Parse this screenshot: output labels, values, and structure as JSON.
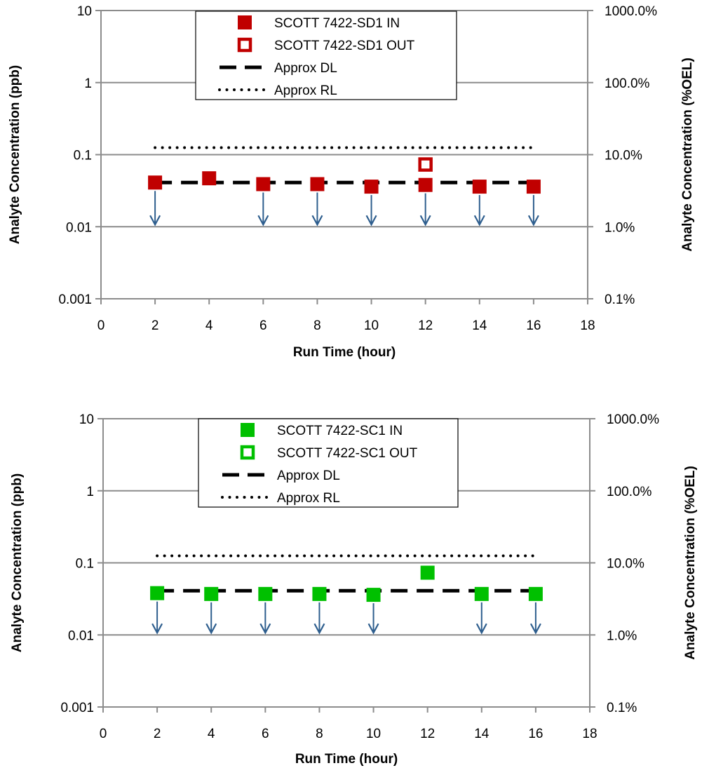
{
  "chart_data": [
    {
      "type": "scatter",
      "x_label": "Run Time (hour)",
      "y_label": "Analyte Concentration  (ppb)",
      "y2_label": "Analyte Concentration  (%OEL)",
      "x_range": [
        0,
        18
      ],
      "x_ticks": [
        "0",
        "2",
        "4",
        "6",
        "8",
        "10",
        "12",
        "14",
        "16",
        "18"
      ],
      "y_scale": "log",
      "y_range": [
        0.001,
        10
      ],
      "y_ticks": [
        "10",
        "1",
        "0.1",
        "0.01",
        "0.001"
      ],
      "y2_ticks": [
        "1000.0%",
        "100.0%",
        "10.0%",
        "1.0%",
        "0.1%"
      ],
      "grid": "horizontal major",
      "legend_position": "top-center",
      "series": [
        {
          "name": "SCOTT 7422-SD1 IN",
          "marker": "filled-square",
          "color": "#C00000",
          "points": [
            {
              "x": 2,
              "y": 0.041,
              "below_detection": true
            },
            {
              "x": 4,
              "y": 0.047,
              "below_detection": false
            },
            {
              "x": 6,
              "y": 0.039,
              "below_detection": true
            },
            {
              "x": 8,
              "y": 0.039,
              "below_detection": true
            },
            {
              "x": 10,
              "y": 0.036,
              "below_detection": true
            },
            {
              "x": 12,
              "y": 0.038,
              "below_detection": true
            },
            {
              "x": 14,
              "y": 0.036,
              "below_detection": true
            },
            {
              "x": 16,
              "y": 0.036,
              "below_detection": true
            }
          ]
        },
        {
          "name": "SCOTT 7422-SD1 OUT",
          "marker": "open-square",
          "color": "#C00000",
          "points": [
            {
              "x": 12,
              "y": 0.073,
              "below_detection": false
            }
          ]
        }
      ],
      "reference_lines": [
        {
          "name": "Approx DL",
          "style": "dashed",
          "color": "#000000",
          "y": 0.041,
          "x_range": [
            2,
            16
          ]
        },
        {
          "name": "Approx RL",
          "style": "dotted",
          "color": "#000000",
          "y": 0.125,
          "x_range": [
            2,
            16
          ]
        }
      ],
      "arrow_color": "#2E5E8E"
    },
    {
      "type": "scatter",
      "x_label": "Run Time (hour)",
      "y_label": "Analyte Concentration  (ppb)",
      "y2_label": "Analyte Concentration  (%OEL)",
      "x_range": [
        0,
        18
      ],
      "x_ticks": [
        "0",
        "2",
        "4",
        "6",
        "8",
        "10",
        "12",
        "14",
        "16",
        "18"
      ],
      "y_scale": "log",
      "y_range": [
        0.001,
        10
      ],
      "y_ticks": [
        "10",
        "1",
        "0.1",
        "0.01",
        "0.001"
      ],
      "y2_ticks": [
        "1000.0%",
        "100.0%",
        "10.0%",
        "1.0%",
        "0.1%"
      ],
      "grid": "horizontal major",
      "legend_position": "top-center",
      "series": [
        {
          "name": "SCOTT 7422-SC1 IN",
          "marker": "filled-square",
          "color": "#00C000",
          "points": [
            {
              "x": 2,
              "y": 0.038,
              "below_detection": true
            },
            {
              "x": 4,
              "y": 0.037,
              "below_detection": true
            },
            {
              "x": 6,
              "y": 0.037,
              "below_detection": true
            },
            {
              "x": 8,
              "y": 0.037,
              "below_detection": true
            },
            {
              "x": 10,
              "y": 0.036,
              "below_detection": true
            },
            {
              "x": 12,
              "y": 0.073,
              "below_detection": false
            },
            {
              "x": 14,
              "y": 0.037,
              "below_detection": true
            },
            {
              "x": 16,
              "y": 0.037,
              "below_detection": true
            }
          ]
        },
        {
          "name": "SCOTT 7422-SC1 OUT",
          "marker": "open-square",
          "color": "#00C000",
          "points": []
        }
      ],
      "reference_lines": [
        {
          "name": "Approx DL",
          "style": "dashed",
          "color": "#000000",
          "y": 0.041,
          "x_range": [
            2,
            16
          ]
        },
        {
          "name": "Approx RL",
          "style": "dotted",
          "color": "#000000",
          "y": 0.125,
          "x_range": [
            2,
            16
          ]
        }
      ],
      "arrow_color": "#2E5E8E"
    }
  ]
}
